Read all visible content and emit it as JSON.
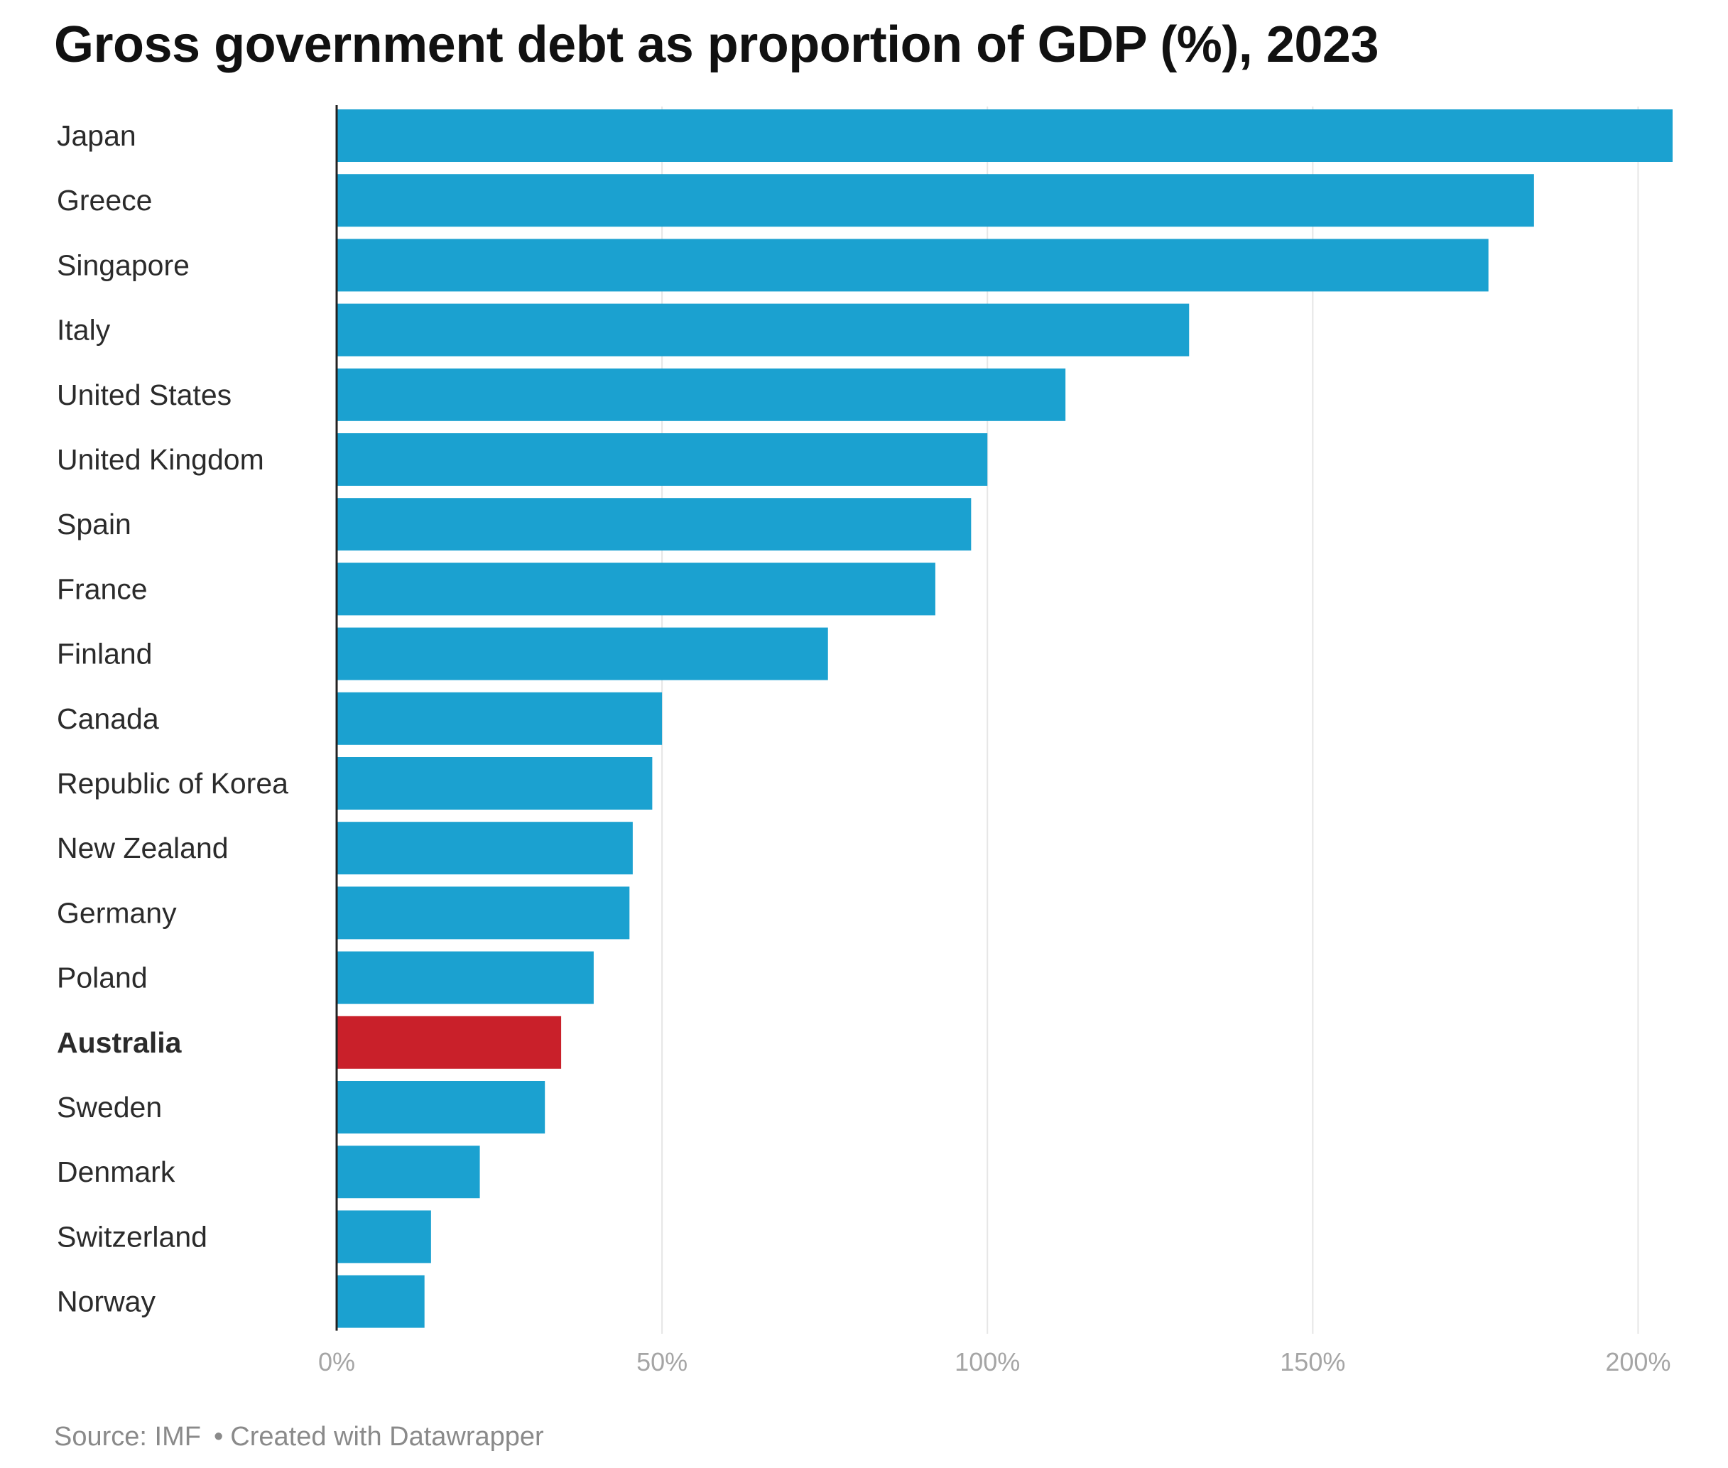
{
  "chart_data": {
    "type": "bar",
    "orientation": "horizontal",
    "title": "Gross government debt as proportion of GDP (%), 2023",
    "categories": [
      "Japan",
      "Greece",
      "Singapore",
      "Italy",
      "United States",
      "United Kingdom",
      "Spain",
      "France",
      "Finland",
      "Canada",
      "Republic of Korea",
      "New Zealand",
      "Germany",
      "Poland",
      "Australia",
      "Sweden",
      "Denmark",
      "Switzerland",
      "Norway"
    ],
    "values": [
      205.3,
      184,
      177,
      131,
      112,
      100,
      97.5,
      92,
      75.5,
      50,
      48.5,
      45.5,
      45,
      39.5,
      34.5,
      32,
      22,
      14.5,
      13.5
    ],
    "highlight": "Australia",
    "xlim": [
      0,
      205.3
    ],
    "xticks": [
      0,
      50,
      100,
      150,
      200
    ],
    "xtick_labels": [
      "0%",
      "50%",
      "100%",
      "150%",
      "200%"
    ],
    "xlabel": "",
    "ylabel": "",
    "grid": true,
    "legend": "none"
  },
  "colors": {
    "bar": "#1ba1d0",
    "highlight": "#c9202a",
    "grid": "#e6e6e6",
    "axis": "#222222",
    "label": "#2b2b2b",
    "tick": "#a5a5a5"
  },
  "footer": {
    "source": "Source: IMF",
    "separator": "•",
    "credit": "Created with Datawrapper"
  }
}
